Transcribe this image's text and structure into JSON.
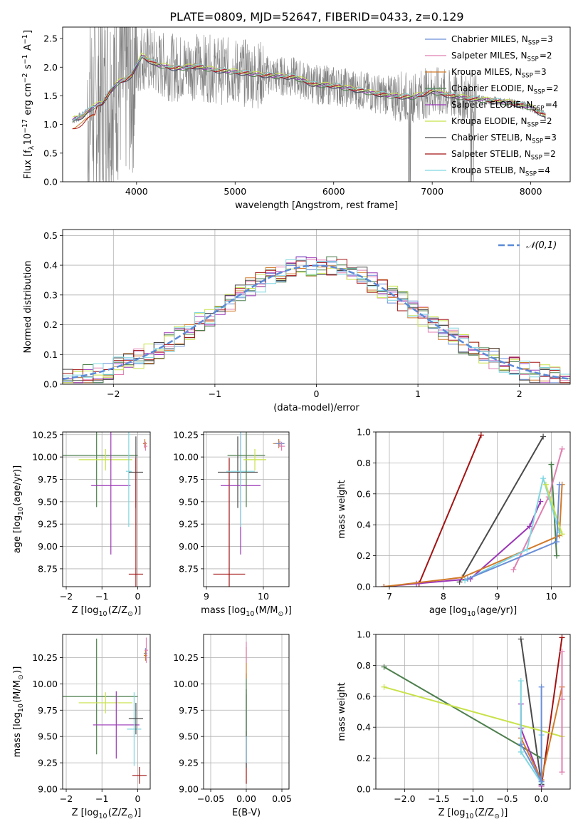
{
  "title": "PLATE=0809, MJD=52647, FIBERID=0433, z=0.129",
  "models": [
    {
      "label": "Chabrier MILES, N$_{SSP}$=3",
      "name": "Chabrier MILES",
      "nssp": "3",
      "color": "#6a8fd8"
    },
    {
      "label": "Salpeter MILES, N$_{SSP}$=2",
      "name": "Salpeter MILES",
      "nssp": "2",
      "color": "#e07fb0"
    },
    {
      "label": "Kroupa MILES, N$_{SSP}$=3",
      "name": "Kroupa MILES",
      "nssp": "3",
      "color": "#d17a2a"
    },
    {
      "label": "Chabrier ELODIE, N$_{SSP}$=2",
      "name": "Chabrier ELODIE",
      "nssp": "2",
      "color": "#4d7f4d"
    },
    {
      "label": "Salpeter ELODIE, N$_{SSP}$=4",
      "name": "Salpeter ELODIE",
      "nssp": "4",
      "color": "#9b36b6"
    },
    {
      "label": "Kroupa ELODIE, N$_{SSP}$=2",
      "name": "Kroupa ELODIE",
      "nssp": "2",
      "color": "#c8e24a"
    },
    {
      "label": "Chabrier STELIB, N$_{SSP}$=3",
      "name": "Chabrier STELIB",
      "nssp": "3",
      "color": "#4a4a4a"
    },
    {
      "label": "Salpeter STELIB, N$_{SSP}$=2",
      "name": "Salpeter STELIB",
      "nssp": "2",
      "color": "#a31313"
    },
    {
      "label": "Kroupa STELIB, N$_{SSP}$=4",
      "name": "Kroupa STELIB",
      "nssp": "4",
      "color": "#7fd6e0"
    }
  ],
  "chart_data": [
    {
      "id": "spectrum",
      "type": "line",
      "xlabel": "wavelength [Angstrom, rest frame]",
      "ylabel": "Flux [f$_\\lambda$10$^{-17}$ erg cm$^{-2}$ s$^{-1}$ A$^{-1}$]",
      "xlim": [
        3250,
        8400
      ],
      "ylim": [
        0,
        2.7
      ],
      "xticks": [
        4000,
        5000,
        6000,
        7000,
        8000
      ],
      "yticks": [
        0.0,
        0.5,
        1.0,
        1.5,
        2.0,
        2.5
      ],
      "ytick_labels": [
        "0.0",
        "0.5",
        "1.0",
        "1.5",
        "2.0",
        "2.5"
      ],
      "data_color": "#808080",
      "data_range": [
        3350,
        8150
      ],
      "model_x": [
        3350,
        3450,
        3550,
        3650,
        3800,
        3950,
        4050,
        4200,
        4400,
        4600,
        4800,
        5000,
        5200,
        5400,
        5600,
        5800,
        6000,
        6200,
        6400,
        6600,
        6800,
        7000,
        7200,
        7400,
        7600,
        7800,
        8000,
        8150
      ],
      "model_y": [
        1.08,
        1.15,
        1.3,
        1.38,
        1.72,
        1.85,
        2.2,
        2.05,
        1.98,
        2.02,
        1.95,
        1.92,
        1.88,
        1.85,
        1.83,
        1.7,
        1.68,
        1.62,
        1.55,
        1.5,
        1.48,
        1.58,
        1.5,
        1.45,
        1.42,
        1.38,
        1.3,
        1.15
      ]
    },
    {
      "id": "residual-histogram",
      "type": "histogram",
      "xlabel": "(data-model)/error",
      "ylabel": "Normed distribution",
      "xlim": [
        -2.5,
        2.5
      ],
      "ylim": [
        0,
        0.52
      ],
      "xticks": [
        -2,
        -1,
        0,
        1,
        2
      ],
      "xtick_labels": [
        "−2",
        "−1",
        "0",
        "1",
        "2"
      ],
      "yticks": [
        0.0,
        0.1,
        0.2,
        0.3,
        0.4,
        0.5
      ],
      "ytick_labels": [
        "0.0",
        "0.1",
        "0.2",
        "0.3",
        "0.4",
        "0.5"
      ],
      "grid": true,
      "bin_width": 0.1,
      "legend": "$\\mathcal{N}(0,1)$",
      "legend_placement": "top-right",
      "gaussian_color": "#5a8ad8"
    },
    {
      "id": "z-vs-age",
      "type": "errorbar",
      "xlabel": "Z [log$_{10}$(Z/Z$_\\odot$)]",
      "ylabel": "age  [log$_{10}$(age/yr)]",
      "xlim": [
        -2.1,
        0.35
      ],
      "ylim": [
        8.55,
        10.28
      ],
      "xticks": [
        -2,
        -1,
        0
      ],
      "xtick_labels": [
        "−2",
        "−1",
        "0"
      ],
      "yticks": [
        8.75,
        9.0,
        9.25,
        9.5,
        9.75,
        10.0,
        10.25
      ],
      "ytick_labels": [
        "8.75",
        "9.00",
        "9.25",
        "9.50",
        "9.75",
        "10.00",
        "10.25"
      ],
      "grid": true,
      "points": [
        {
          "m": 3,
          "x": -1.15,
          "y": 10.02,
          "xerr": 1.15,
          "yerr": 0.58
        },
        {
          "m": 5,
          "x": -0.9,
          "y": 9.97,
          "xerr": 0.75,
          "yerr": 0.12
        },
        {
          "m": 4,
          "x": -0.75,
          "y": 9.68,
          "xerr": 0.55,
          "yerr": 0.77
        },
        {
          "m": 8,
          "x": -0.25,
          "y": 9.84,
          "xerr": 0.08,
          "yerr": 0.62
        },
        {
          "m": 6,
          "x": -0.05,
          "y": 9.83,
          "xerr": 0.2,
          "yerr": 0.4
        },
        {
          "m": 7,
          "x": -0.05,
          "y": 8.69,
          "xerr": 0.2,
          "yerr": 1.3
        },
        {
          "m": 0,
          "x": 0.2,
          "y": 10.15,
          "xerr": 0.05,
          "yerr": 0.03
        },
        {
          "m": 2,
          "x": 0.2,
          "y": 10.15,
          "xerr": 0.05,
          "yerr": 0.05
        },
        {
          "m": 1,
          "x": 0.22,
          "y": 10.12,
          "xerr": 0.05,
          "yerr": 0.05
        }
      ]
    },
    {
      "id": "mass-vs-age",
      "type": "errorbar",
      "xlabel": "mass [log$_{10}$(M/M$_\\odot$)]",
      "ylabel": "",
      "xlim": [
        8.95,
        10.45
      ],
      "ylim": [
        8.55,
        10.28
      ],
      "xticks": [
        9,
        10
      ],
      "xtick_labels": [
        "9",
        "10"
      ],
      "yticks": [
        8.75,
        9.0,
        9.25,
        9.5,
        9.75,
        10.0,
        10.25
      ],
      "ytick_labels": [
        "8.75",
        "9.00",
        "9.25",
        "9.50",
        "9.75",
        "10.00",
        "10.25"
      ],
      "grid": true,
      "points": [
        {
          "m": 7,
          "x": 9.4,
          "y": 8.69,
          "xerr": 0.28,
          "yerr": 1.3
        },
        {
          "m": 6,
          "x": 9.55,
          "y": 9.83,
          "xerr": 0.35,
          "yerr": 0.4
        },
        {
          "m": 4,
          "x": 9.6,
          "y": 9.68,
          "xerr": 0.35,
          "yerr": 0.77
        },
        {
          "m": 8,
          "x": 9.6,
          "y": 9.84,
          "xerr": 0.25,
          "yerr": 0.62
        },
        {
          "m": 3,
          "x": 9.7,
          "y": 10.02,
          "xerr": 0.33,
          "yerr": 0.58
        },
        {
          "m": 5,
          "x": 9.85,
          "y": 9.97,
          "xerr": 0.2,
          "yerr": 0.12
        },
        {
          "m": 2,
          "x": 10.27,
          "y": 10.15,
          "xerr": 0.1,
          "yerr": 0.05
        },
        {
          "m": 0,
          "x": 10.29,
          "y": 10.15,
          "xerr": 0.08,
          "yerr": 0.03
        },
        {
          "m": 1,
          "x": 10.32,
          "y": 10.12,
          "xerr": 0.06,
          "yerr": 0.05
        }
      ]
    },
    {
      "id": "age-vs-weight",
      "type": "line",
      "xlabel": "age  [log$_{10}$(age/yr)]",
      "ylabel": "mass weight",
      "xlim": [
        6.75,
        10.35
      ],
      "ylim": [
        0,
        1
      ],
      "xticks": [
        7,
        8,
        9,
        10
      ],
      "xtick_labels": [
        "7",
        "8",
        "9",
        "10"
      ],
      "yticks": [
        0.0,
        0.2,
        0.4,
        0.6,
        0.8,
        1.0
      ],
      "ytick_labels": [
        "0.0",
        "0.2",
        "0.4",
        "0.6",
        "0.8",
        "1.0"
      ],
      "grid": true,
      "series": [
        {
          "m": 7,
          "x": [
            7.55,
            8.7
          ],
          "y": [
            0.02,
            0.98
          ]
        },
        {
          "m": 6,
          "x": [
            8.3,
            9.85
          ],
          "y": [
            0.03,
            0.97
          ]
        },
        {
          "m": 3,
          "x": [
            10.0,
            10.1
          ],
          "y": [
            0.79,
            0.2
          ]
        },
        {
          "m": 4,
          "x": [
            6.9,
            7.5,
            8.5,
            9.6,
            9.8
          ],
          "y": [
            0.0,
            0.02,
            0.05,
            0.39,
            0.55
          ]
        },
        {
          "m": 2,
          "x": [
            6.9,
            8.35,
            10.15,
            10.2
          ],
          "y": [
            0.0,
            0.06,
            0.33,
            0.66
          ]
        },
        {
          "m": 1,
          "x": [
            9.3,
            9.95,
            10.2
          ],
          "y": [
            0.11,
            0.58,
            0.89
          ]
        },
        {
          "m": 8,
          "x": [
            8.4,
            9.55,
            9.85,
            10.15
          ],
          "y": [
            0.04,
            0.24,
            0.7,
            0.35
          ]
        },
        {
          "m": 5,
          "x": [
            9.9,
            10.2
          ],
          "y": [
            0.66,
            0.34
          ]
        },
        {
          "m": 0,
          "x": [
            8.45,
            10.1,
            10.15
          ],
          "y": [
            0.05,
            0.29,
            0.66
          ]
        }
      ]
    },
    {
      "id": "z-vs-mass",
      "type": "errorbar",
      "xlabel": "Z [log$_{10}$(Z/Z$_\\odot$)]",
      "ylabel": "mass [log$_{10}$(M/M$_\\odot$)]",
      "xlim": [
        -2.1,
        0.35
      ],
      "ylim": [
        9.0,
        10.47
      ],
      "xticks": [
        -2,
        -1,
        0
      ],
      "xtick_labels": [
        "−2",
        "−1",
        "0"
      ],
      "yticks": [
        9.0,
        9.25,
        9.5,
        9.75,
        10.0,
        10.25
      ],
      "ytick_labels": [
        "9.00",
        "9.25",
        "9.50",
        "9.75",
        "10.00",
        "10.25"
      ],
      "grid": true,
      "points": [
        {
          "m": 3,
          "x": -1.15,
          "y": 9.88,
          "xerr": 1.15,
          "yerr": 0.55
        },
        {
          "m": 5,
          "x": -0.9,
          "y": 9.82,
          "xerr": 0.75,
          "yerr": 0.1
        },
        {
          "m": 4,
          "x": -0.6,
          "y": 9.61,
          "xerr": 0.65,
          "yerr": 0.32
        },
        {
          "m": 8,
          "x": -0.1,
          "y": 9.57,
          "xerr": 0.2,
          "yerr": 0.35
        },
        {
          "m": 6,
          "x": -0.05,
          "y": 9.67,
          "xerr": 0.2,
          "yerr": 0.15
        },
        {
          "m": 7,
          "x": 0.05,
          "y": 9.13,
          "xerr": 0.2,
          "yerr": 0.08
        },
        {
          "m": 0,
          "x": 0.22,
          "y": 10.29,
          "xerr": 0.05,
          "yerr": 0.05
        },
        {
          "m": 2,
          "x": 0.22,
          "y": 10.27,
          "xerr": 0.05,
          "yerr": 0.05
        },
        {
          "m": 1,
          "x": 0.24,
          "y": 10.32,
          "xerr": 0.05,
          "yerr": 0.12
        }
      ]
    },
    {
      "id": "ebv-vs-mass",
      "type": "errorbar",
      "xlabel": "E(B-V)",
      "ylabel": "",
      "xlim": [
        -0.06,
        0.06
      ],
      "ylim": [
        9.0,
        10.47
      ],
      "xticks": [
        -0.05,
        0.0,
        0.05
      ],
      "xtick_labels": [
        "−0.05",
        "0.00",
        "0.05"
      ],
      "yticks": [
        9.0,
        9.25,
        9.5,
        9.75,
        10.0,
        10.25
      ],
      "ytick_labels": [
        "9.00",
        "9.25",
        "9.50",
        "9.75",
        "10.00",
        "10.25"
      ],
      "grid": true,
      "points": [
        {
          "m": 7,
          "x": 0.0,
          "y": 9.3,
          "xerr": 0.0,
          "yerr": 0.25
        },
        {
          "m": 6,
          "x": 0.0,
          "y": 9.55,
          "xerr": 0.0,
          "yerr": 0.35
        },
        {
          "m": 4,
          "x": 0.0,
          "y": 9.6,
          "xerr": 0.0,
          "yerr": 0.35
        },
        {
          "m": 8,
          "x": 0.0,
          "y": 9.6,
          "xerr": 0.0,
          "yerr": 0.35
        },
        {
          "m": 5,
          "x": 0.0,
          "y": 9.85,
          "xerr": 0.0,
          "yerr": 0.1
        },
        {
          "m": 3,
          "x": 0.0,
          "y": 9.8,
          "xerr": 0.0,
          "yerr": 0.3
        },
        {
          "m": 2,
          "x": 0.0,
          "y": 10.2,
          "xerr": 0.0,
          "yerr": 0.15
        },
        {
          "m": 1,
          "x": 0.0,
          "y": 10.3,
          "xerr": 0.0,
          "yerr": 0.1
        }
      ]
    },
    {
      "id": "z-vs-weight",
      "type": "line",
      "xlabel": "Z [log$_{10}$(Z/Z$_\\odot$)]",
      "ylabel": "mass weight",
      "xlim": [
        -2.42,
        0.42
      ],
      "ylim": [
        0,
        1
      ],
      "xticks": [
        -2.0,
        -1.5,
        -1.0,
        -0.5,
        0.0
      ],
      "xtick_labels": [
        "−2.0",
        "−1.5",
        "−1.0",
        "−0.5",
        "0.0"
      ],
      "yticks": [
        0.0,
        0.2,
        0.4,
        0.6,
        0.8,
        1.0
      ],
      "ytick_labels": [
        "0.0",
        "0.2",
        "0.4",
        "0.6",
        "0.8",
        "1.0"
      ],
      "grid": true,
      "series": [
        {
          "m": 6,
          "x": [
            -0.3,
            0.0
          ],
          "y": [
            0.97,
            0.03
          ]
        },
        {
          "m": 7,
          "x": [
            0.0,
            0.3
          ],
          "y": [
            0.02,
            0.98
          ]
        },
        {
          "m": 3,
          "x": [
            -2.3,
            0.0
          ],
          "y": [
            0.79,
            0.2
          ]
        },
        {
          "m": 5,
          "x": [
            -2.3,
            0.3
          ],
          "y": [
            0.66,
            0.34
          ]
        },
        {
          "m": 4,
          "x": [
            -0.3,
            -0.3,
            0.0,
            0.0
          ],
          "y": [
            0.55,
            0.39,
            0.05,
            0.02
          ]
        },
        {
          "m": 2,
          "x": [
            -0.3,
            0.0,
            0.3
          ],
          "y": [
            0.33,
            0.06,
            0.66
          ]
        },
        {
          "m": 1,
          "x": [
            0.3,
            0.3,
            0.3
          ],
          "y": [
            0.11,
            0.58,
            0.89
          ]
        },
        {
          "m": 8,
          "x": [
            -0.3,
            -0.3,
            0.0,
            0.0
          ],
          "y": [
            0.7,
            0.24,
            0.04,
            0.35
          ]
        },
        {
          "m": 0,
          "x": [
            -0.3,
            0.0,
            0.0
          ],
          "y": [
            0.29,
            0.05,
            0.66
          ]
        }
      ]
    }
  ]
}
